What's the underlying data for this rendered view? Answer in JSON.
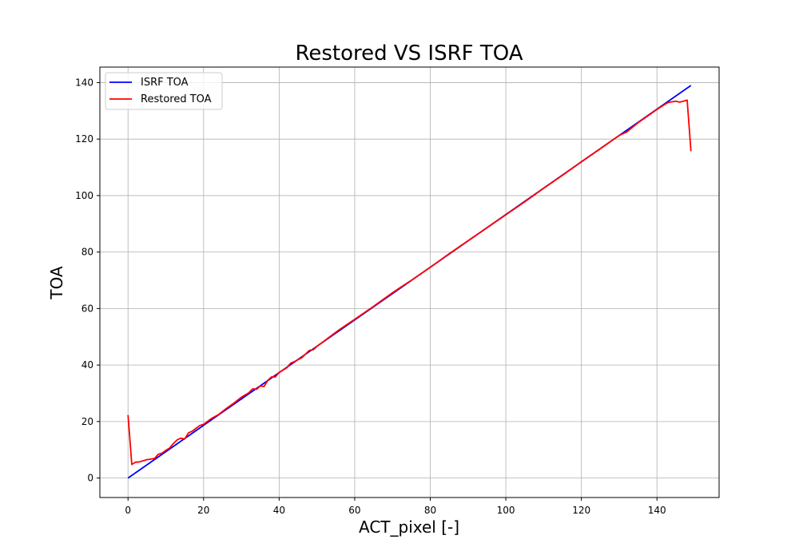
{
  "chart_data": {
    "type": "line",
    "title": "Restored VS ISRF TOA",
    "xlabel": "ACT_pixel [-]",
    "ylabel": "TOA",
    "xlim": [
      -7.45,
      156.45
    ],
    "ylim": [
      -6.9,
      145.5
    ],
    "xticks": [
      0,
      20,
      40,
      60,
      80,
      100,
      120,
      140
    ],
    "yticks": [
      0,
      20,
      40,
      60,
      80,
      100,
      120,
      140
    ],
    "grid": true,
    "legend_position": "upper-left",
    "colors": {
      "isrf": "#0000ff",
      "restored": "#ff0000",
      "grid": "#b0b0b0"
    },
    "series": [
      {
        "name": "ISRF TOA",
        "color": "#0000ff",
        "x": [
          0,
          149
        ],
        "y": [
          0,
          139
        ]
      },
      {
        "name": "Restored TOA",
        "color": "#ff0000",
        "x": [
          0,
          1,
          2,
          3,
          4,
          5,
          6,
          7,
          8,
          9,
          10,
          11,
          12,
          13,
          14,
          15,
          16,
          17,
          18,
          19,
          20,
          22,
          24,
          26,
          28,
          30,
          32,
          33,
          34,
          35,
          36,
          37,
          38,
          39,
          40,
          42,
          43,
          44,
          46,
          48,
          49,
          50,
          52,
          54,
          56,
          58,
          60,
          65,
          70,
          72,
          75,
          80,
          85,
          90,
          95,
          100,
          105,
          110,
          115,
          120,
          125,
          130,
          132,
          135,
          138,
          140,
          142,
          143,
          144,
          145,
          146,
          147,
          148,
          149
        ],
        "y": [
          22.3,
          4.8,
          5.6,
          5.7,
          6.1,
          6.5,
          6.7,
          6.9,
          8.4,
          8.8,
          9.8,
          10.6,
          12.2,
          13.5,
          14.1,
          13.8,
          16.0,
          16.6,
          17.6,
          18.6,
          19.0,
          21.0,
          22.5,
          24.6,
          26.5,
          28.6,
          30.2,
          31.6,
          31.4,
          32.6,
          32.4,
          34.6,
          35.8,
          35.8,
          37.4,
          39.0,
          40.6,
          41.2,
          42.6,
          45.2,
          45.4,
          46.6,
          48.6,
          50.6,
          52.6,
          54.4,
          56.2,
          60.8,
          65.6,
          67.4,
          70.0,
          74.6,
          79.4,
          84.0,
          88.6,
          93.2,
          97.8,
          102.6,
          107.2,
          112.0,
          116.6,
          121.3,
          122.5,
          125.8,
          128.6,
          130.5,
          132.2,
          133.0,
          133.2,
          133.4,
          133.1,
          133.4,
          133.8,
          115.7
        ]
      }
    ]
  }
}
